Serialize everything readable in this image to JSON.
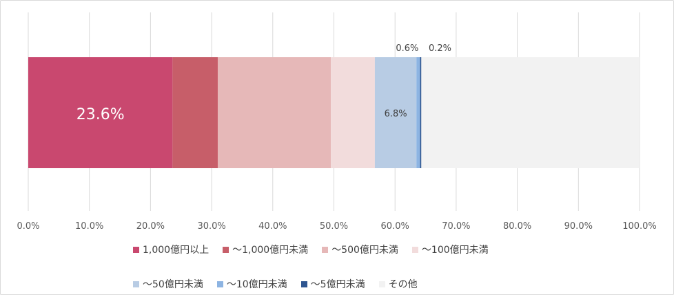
{
  "chart_data": {
    "type": "bar",
    "orientation": "horizontal",
    "stacked": true,
    "xlim": [
      0,
      100
    ],
    "x_ticks": [
      "0.0%",
      "10.0%",
      "20.0%",
      "30.0%",
      "40.0%",
      "50.0%",
      "60.0%",
      "70.0%",
      "80.0%",
      "90.0%",
      "100.0%"
    ],
    "grid": true,
    "legend_position": "bottom",
    "series": [
      {
        "name": "1,000億円以上",
        "value": 23.6,
        "label": "23.6%",
        "color": "#c9486f"
      },
      {
        "name": "～1,000億円未満",
        "value": 7.4,
        "label": "",
        "color": "#c75e69"
      },
      {
        "name": "～500億円未満",
        "value": 18.5,
        "label": "",
        "color": "#e6b8b8"
      },
      {
        "name": "～100億円未満",
        "value": 7.2,
        "label": "",
        "color": "#f2dcdc"
      },
      {
        "name": "～50億円未満",
        "value": 6.8,
        "label": "6.8%",
        "color": "#b8cce4"
      },
      {
        "name": "～10億円未満",
        "value": 0.6,
        "label": "0.6%",
        "color": "#8db4e2"
      },
      {
        "name": "～5億円未満",
        "value": 0.2,
        "label": "0.2%",
        "color": "#2e5590"
      },
      {
        "name": "その他",
        "value": 35.7,
        "label": "",
        "color": "#f2f2f2"
      }
    ]
  }
}
